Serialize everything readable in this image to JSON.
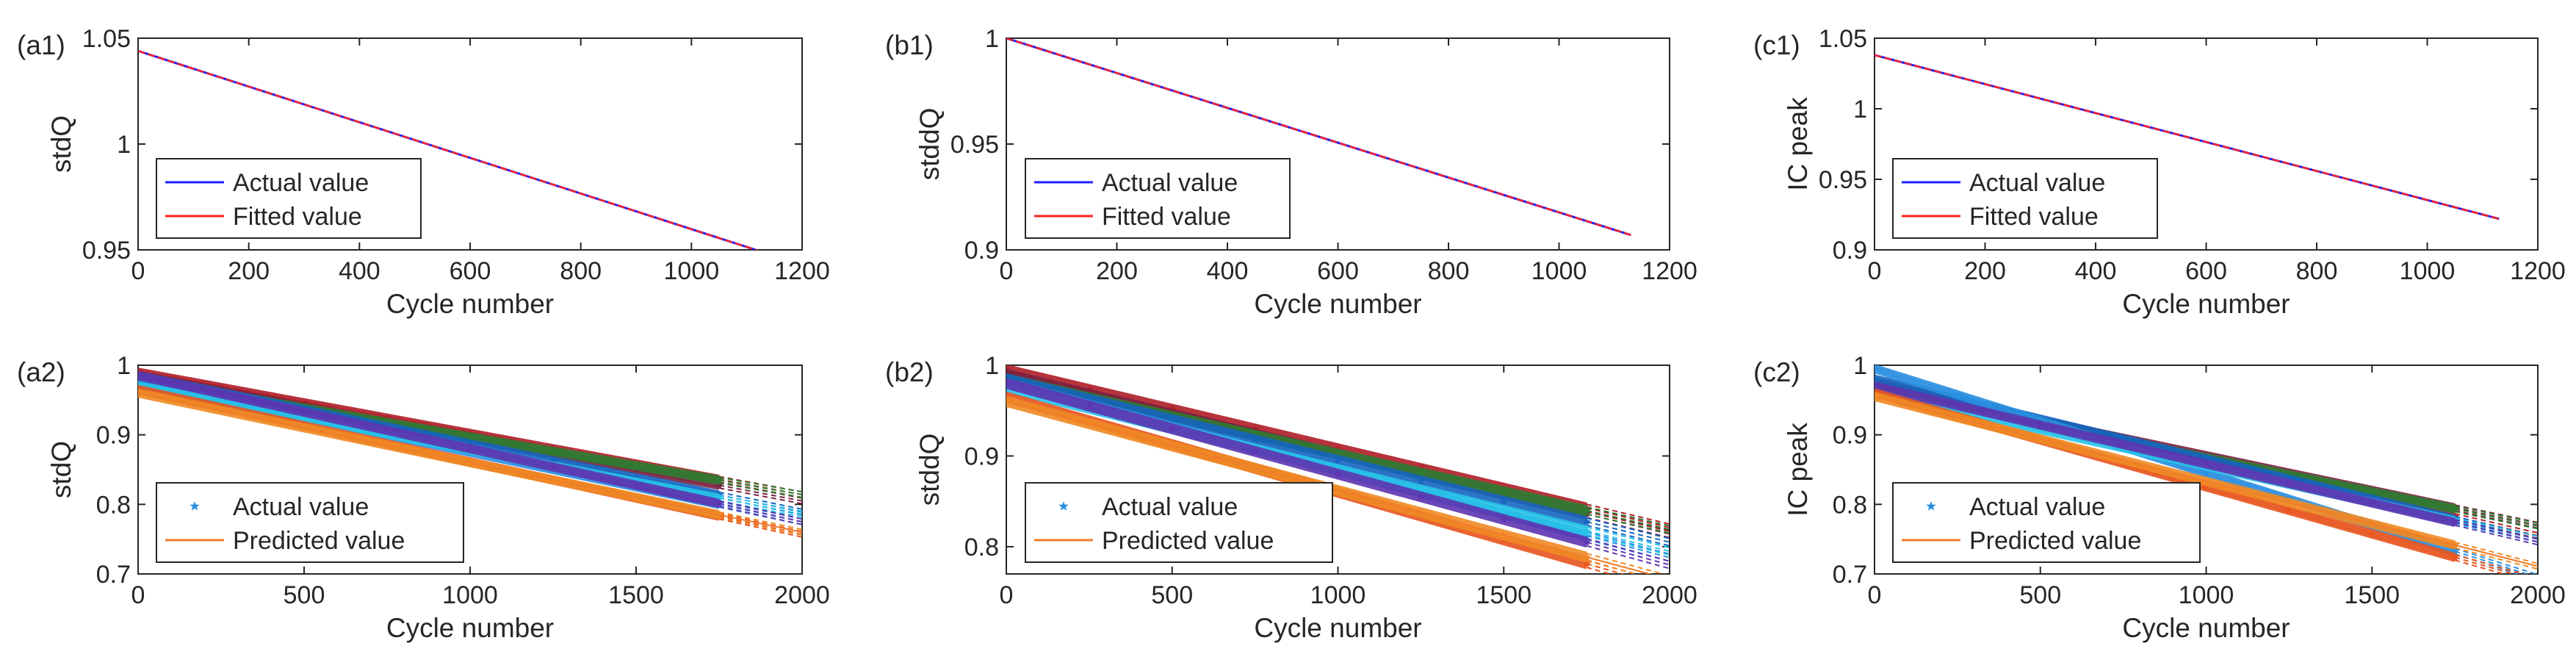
{
  "chart_data": [
    {
      "id": "a1",
      "type": "line",
      "panel_label": "(a1)",
      "xlabel": "Cycle number",
      "ylabel": "stdQ",
      "xlim": [
        0,
        1200
      ],
      "ylim": [
        0.95,
        1.05
      ],
      "xticks": [
        0,
        200,
        400,
        600,
        800,
        1000,
        1200
      ],
      "yticks": [
        0.95,
        1,
        1.05
      ],
      "series": [
        {
          "name": "Actual value",
          "color": "#1f1fff",
          "x": [
            0,
            1140
          ],
          "y": [
            1.044,
            0.948
          ]
        },
        {
          "name": "Fitted value",
          "color": "#ff2020",
          "x": [
            0,
            1140
          ],
          "y": [
            1.044,
            0.948
          ]
        }
      ]
    },
    {
      "id": "b1",
      "type": "line",
      "panel_label": "(b1)",
      "xlabel": "Cycle number",
      "ylabel": "stddQ",
      "xlim": [
        0,
        1200
      ],
      "ylim": [
        0.9,
        1.0
      ],
      "xticks": [
        0,
        200,
        400,
        600,
        800,
        1000,
        1200
      ],
      "yticks": [
        0.9,
        0.95,
        1
      ],
      "series": [
        {
          "name": "Actual value",
          "color": "#1f1fff",
          "x": [
            0,
            1130
          ],
          "y": [
            1.0,
            0.907
          ]
        },
        {
          "name": "Fitted value",
          "color": "#ff2020",
          "x": [
            0,
            1130
          ],
          "y": [
            1.0,
            0.907
          ]
        }
      ]
    },
    {
      "id": "c1",
      "type": "line",
      "panel_label": "(c1)",
      "xlabel": "Cycle number",
      "ylabel": "IC peak",
      "xlim": [
        0,
        1200
      ],
      "ylim": [
        0.9,
        1.05
      ],
      "xticks": [
        0,
        200,
        400,
        600,
        800,
        1000,
        1200
      ],
      "yticks": [
        0.9,
        0.95,
        1,
        1.05
      ],
      "series": [
        {
          "name": "Actual value",
          "color": "#1f1fff",
          "x": [
            0,
            1130
          ],
          "y": [
            1.038,
            0.922
          ]
        },
        {
          "name": "Fitted value",
          "color": "#ff2020",
          "x": [
            0,
            1130
          ],
          "y": [
            1.038,
            0.922
          ]
        }
      ]
    },
    {
      "id": "a2",
      "type": "line",
      "panel_label": "(a2)",
      "xlabel": "Cycle number",
      "ylabel": "stdQ",
      "xlim": [
        0,
        2000
      ],
      "ylim": [
        0.7,
        1.0
      ],
      "xticks": [
        0,
        500,
        1000,
        1500,
        2000
      ],
      "yticks": [
        0.7,
        0.8,
        0.9,
        1
      ],
      "legend": [
        {
          "name": "Actual value",
          "marker": "star",
          "color": "#2a8fe0"
        },
        {
          "name": "Predicted value",
          "marker": "line",
          "color": "#f07c2a"
        }
      ],
      "cell_series": [
        {
          "color": "#b01e28",
          "start": 0.99,
          "slope": 8.8e-05
        },
        {
          "color": "#7b2240",
          "start": 0.985,
          "slope": 9e-05
        },
        {
          "color": "#2e7d32",
          "start": 0.98,
          "slope": 8.3e-05
        },
        {
          "color": "#1565c0",
          "start": 0.985,
          "slope": 9.8e-05
        },
        {
          "color": "#2a8fe0",
          "start": 0.975,
          "slope": 0.0001
        },
        {
          "color": "#27c4e8",
          "start": 0.97,
          "slope": 9.2e-05
        },
        {
          "color": "#5e35b1",
          "start": 0.985,
          "slope": 0.000105
        },
        {
          "color": "#e8541e",
          "start": 0.965,
          "slope": 0.000104
        },
        {
          "color": "#f08a24",
          "start": 0.96,
          "slope": 0.0001
        }
      ],
      "actual_end_cycle": 1750,
      "predicted_end_cycle": 2000
    },
    {
      "id": "b2",
      "type": "line",
      "panel_label": "(b2)",
      "xlabel": "Cycle number",
      "ylabel": "stddQ",
      "xlim": [
        0,
        2000
      ],
      "ylim": [
        0.77,
        1.0
      ],
      "xticks": [
        0,
        500,
        1000,
        1500,
        2000
      ],
      "yticks": [
        0.8,
        0.9,
        1
      ],
      "legend": [
        {
          "name": "Actual value",
          "marker": "star",
          "color": "#2a8fe0"
        },
        {
          "name": "Predicted value",
          "marker": "line",
          "color": "#f07c2a"
        }
      ],
      "cell_series": [
        {
          "color": "#b01e28",
          "start": 0.995,
          "slope": 8.7e-05
        },
        {
          "color": "#7b2240",
          "start": 0.99,
          "slope": 8.8e-05
        },
        {
          "color": "#2e7d32",
          "start": 0.985,
          "slope": 8.3e-05
        },
        {
          "color": "#1565c0",
          "start": 0.985,
          "slope": 9e-05
        },
        {
          "color": "#2a8fe0",
          "start": 0.98,
          "slope": 9.6e-05
        },
        {
          "color": "#27c4e8",
          "start": 0.975,
          "slope": 9e-05
        },
        {
          "color": "#5e35b1",
          "start": 0.98,
          "slope": 0.0001
        },
        {
          "color": "#e8541e",
          "start": 0.965,
          "slope": 0.000105
        },
        {
          "color": "#f08a24",
          "start": 0.96,
          "slope": 9.8e-05
        }
      ],
      "actual_end_cycle": 1750,
      "predicted_end_cycle": 2000
    },
    {
      "id": "c2",
      "type": "line",
      "panel_label": "(c2)",
      "xlabel": "Cycle number",
      "ylabel": "IC peak",
      "xlim": [
        0,
        2000
      ],
      "ylim": [
        0.7,
        1.0
      ],
      "xticks": [
        0,
        500,
        1000,
        1500,
        2000
      ],
      "yticks": [
        0.7,
        0.8,
        0.9,
        1
      ],
      "legend": [
        {
          "name": "Actual value",
          "marker": "star",
          "color": "#2a8fe0"
        },
        {
          "name": "Predicted value",
          "marker": "line",
          "color": "#f07c2a"
        }
      ],
      "cell_series": [
        {
          "color": "#b01e28",
          "start": 0.975,
          "slope": 0.00011
        },
        {
          "color": "#7b2240",
          "start": 0.97,
          "slope": 0.0001
        },
        {
          "color": "#2e7d32",
          "start": 0.965,
          "slope": 9.8e-05
        },
        {
          "color": "#1565c0",
          "start": 0.98,
          "slope": 0.000115
        },
        {
          "color": "#2a8fe0",
          "start": 0.995,
          "slope": 0.00015
        },
        {
          "color": "#27c4e8",
          "start": 0.96,
          "slope": 0.000105
        },
        {
          "color": "#5e35b1",
          "start": 0.97,
          "slope": 0.000112
        },
        {
          "color": "#e8541e",
          "start": 0.96,
          "slope": 0.000135
        },
        {
          "color": "#f08a24",
          "start": 0.955,
          "slope": 0.000122
        }
      ],
      "actual_end_cycle": 1750,
      "predicted_end_cycle": 2000
    }
  ]
}
